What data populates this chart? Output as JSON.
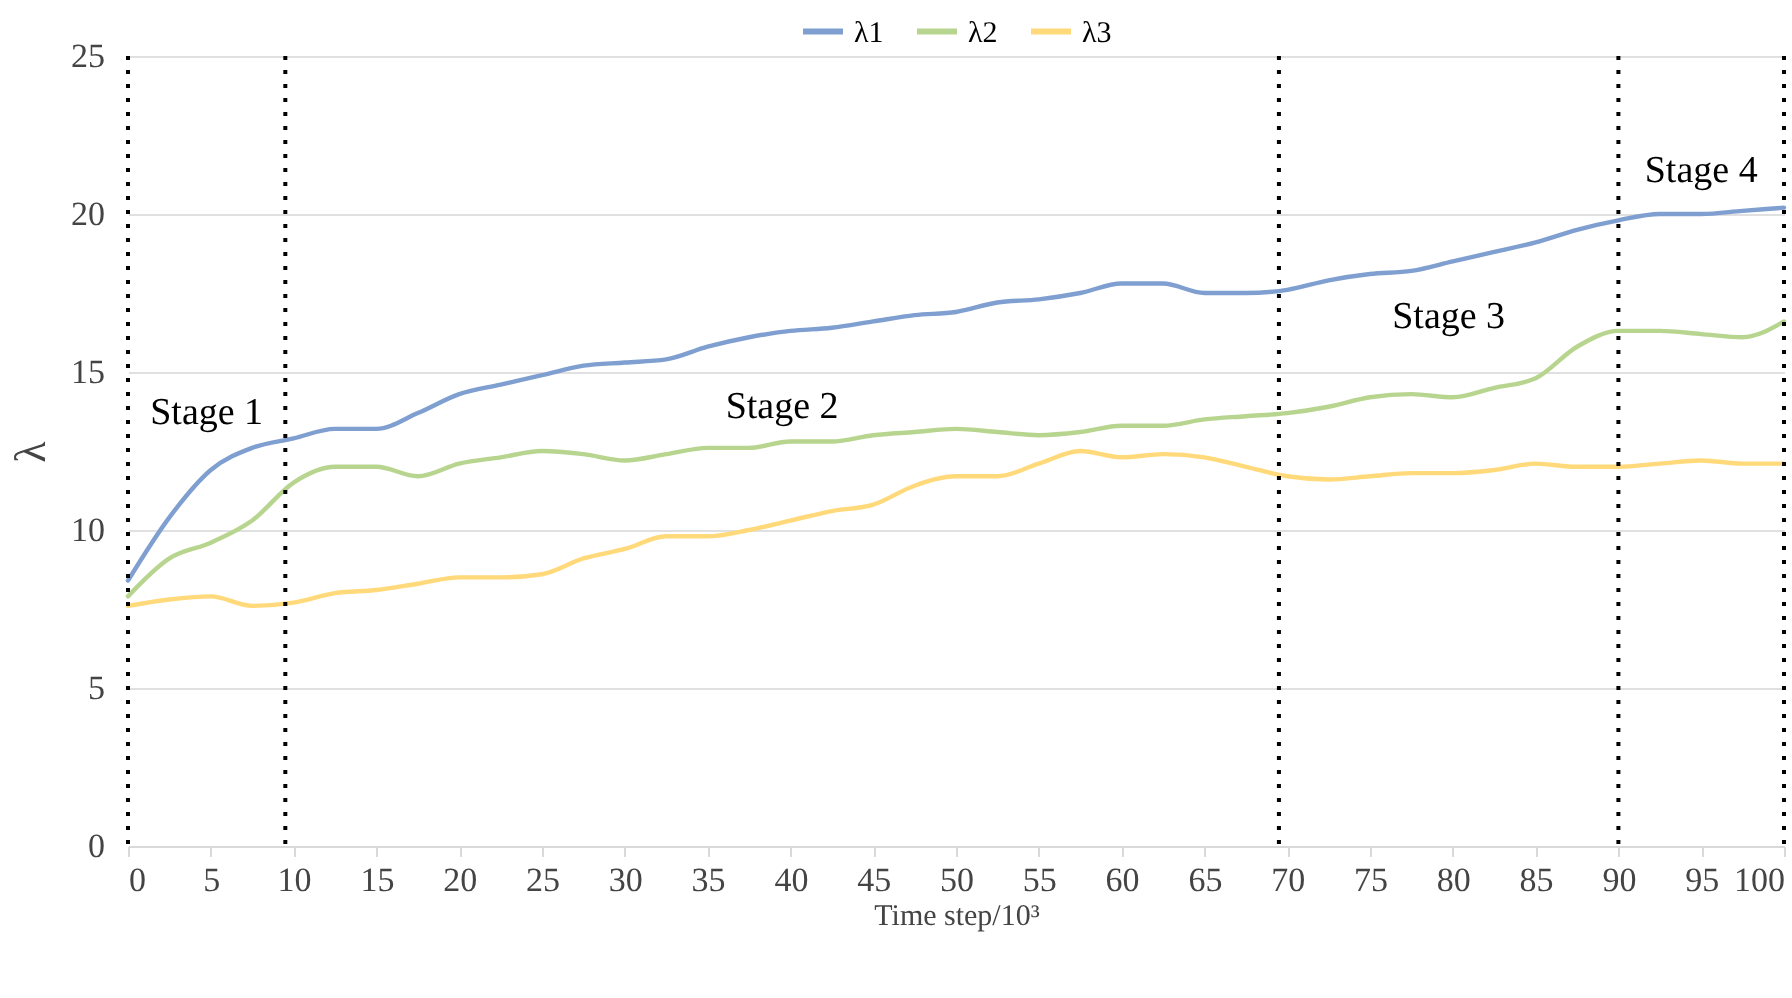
{
  "chart_data": {
    "type": "line",
    "xlabel": "Time step/10³",
    "ylabel": "λ",
    "x": [
      0,
      2.5,
      5,
      7.5,
      10,
      12.5,
      15,
      17.5,
      20,
      22.5,
      25,
      27.5,
      30,
      32.5,
      35,
      37.5,
      40,
      42.5,
      45,
      47.5,
      50,
      52.5,
      55,
      57.5,
      60,
      62.5,
      65,
      67.5,
      70,
      72.5,
      75,
      77.5,
      80,
      82.5,
      85,
      87.5,
      90,
      92.5,
      95,
      97.5,
      100
    ],
    "series": [
      {
        "name": "λ1",
        "color": "#7f9fd1",
        "values": [
          8.4,
          10.4,
          11.9,
          12.6,
          12.9,
          13.2,
          13.2,
          13.7,
          14.3,
          14.6,
          14.9,
          15.2,
          15.3,
          15.4,
          15.8,
          16.1,
          16.3,
          16.4,
          16.6,
          16.8,
          16.9,
          17.2,
          17.3,
          17.5,
          17.8,
          17.8,
          17.5,
          17.5,
          17.6,
          17.9,
          18.1,
          18.2,
          18.5,
          18.8,
          19.1,
          19.5,
          19.8,
          20.0,
          20.0,
          20.1,
          20.2
        ]
      },
      {
        "name": "λ2",
        "color": "#b8d58f",
        "values": [
          7.9,
          9.1,
          9.6,
          10.3,
          11.5,
          12.0,
          12.0,
          11.7,
          12.1,
          12.3,
          12.5,
          12.4,
          12.2,
          12.4,
          12.6,
          12.6,
          12.8,
          12.8,
          13.0,
          13.1,
          13.2,
          13.1,
          13.0,
          13.1,
          13.3,
          13.3,
          13.5,
          13.6,
          13.7,
          13.9,
          14.2,
          14.3,
          14.2,
          14.5,
          14.8,
          15.8,
          16.3,
          16.3,
          16.2,
          16.1,
          16.6
        ]
      },
      {
        "name": "λ3",
        "color": "#ffd97a",
        "values": [
          7.6,
          7.8,
          7.9,
          7.6,
          7.7,
          8.0,
          8.1,
          8.3,
          8.5,
          8.5,
          8.6,
          9.1,
          9.4,
          9.8,
          9.8,
          10.0,
          10.3,
          10.6,
          10.8,
          11.4,
          11.7,
          11.7,
          12.1,
          12.5,
          12.3,
          12.4,
          12.3,
          12.0,
          11.7,
          11.6,
          11.7,
          11.8,
          11.8,
          11.9,
          12.1,
          12.0,
          12.0,
          12.1,
          12.2,
          12.1,
          12.1
        ]
      }
    ],
    "xlim": [
      0,
      100
    ],
    "xticks": [
      0,
      5,
      10,
      15,
      20,
      25,
      30,
      35,
      40,
      45,
      50,
      55,
      60,
      65,
      70,
      75,
      80,
      85,
      90,
      95,
      100
    ],
    "ylim": [
      0,
      25
    ],
    "yticks": [
      0,
      5,
      10,
      15,
      20,
      25
    ],
    "grid": "y",
    "legend": "top",
    "line_style": "solid",
    "ref_lines": [
      {
        "axis": "x",
        "value": 0,
        "color": "#000000",
        "line_style": "dotted"
      },
      {
        "axis": "x",
        "value": 9.5,
        "color": "#000000",
        "line_style": "dotted"
      },
      {
        "axis": "x",
        "value": 69.5,
        "color": "#000000",
        "line_style": "dotted"
      },
      {
        "axis": "x",
        "value": 90,
        "color": "#000000",
        "line_style": "dotted"
      },
      {
        "axis": "x",
        "value": 100,
        "color": "#000000",
        "line_style": "dotted"
      }
    ],
    "annotations": [
      "Stage 1",
      "Stage 2",
      "Stage 3",
      "Stage 4"
    ]
  }
}
